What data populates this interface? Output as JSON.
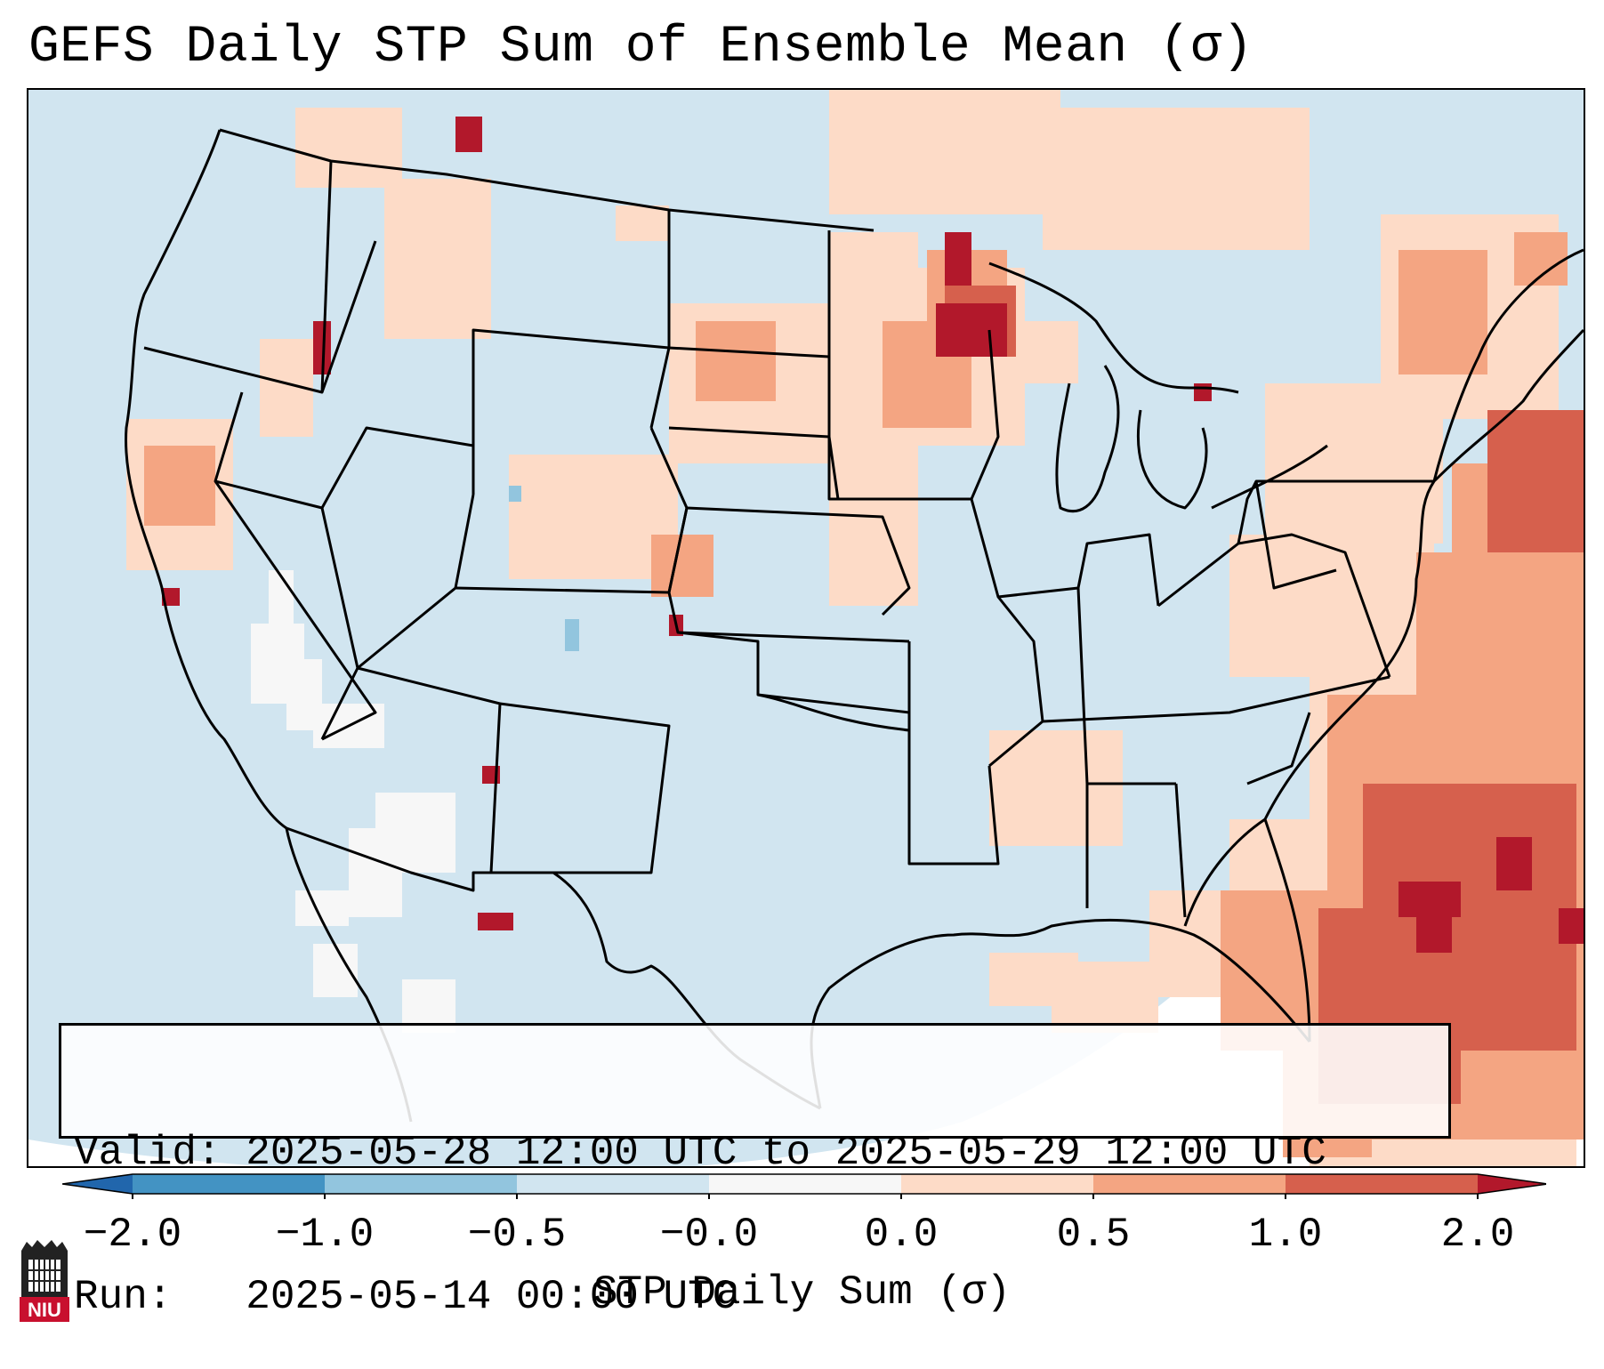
{
  "title": "GEFS Daily STP Sum of Ensemble Mean (σ)",
  "info": {
    "valid_line": "Valid: 2025-05-28 12:00 UTC to 2025-05-29 12:00 UTC",
    "run_line": "Run:   2025-05-14 00:00 UTC"
  },
  "colorbar": {
    "label": "STP Daily Sum (σ)",
    "tick_labels": [
      "−2.0",
      "−1.0",
      "−0.5",
      "−0.0",
      "0.0",
      "0.5",
      "1.0",
      "2.0"
    ],
    "colors": {
      "under": "#2166ac",
      "bins": [
        "#4393c3",
        "#92c5de",
        "#d1e5f0",
        "#f7f7f7",
        "#fddbc7",
        "#f4a582",
        "#d6604d"
      ],
      "over": "#b2182b"
    }
  },
  "map": {
    "background_value_color": "#d1e5f0",
    "outside_domain_color": "#ffffff",
    "fields": {
      "strong_anomaly_regions": [
        "Minnesota / Wisconsin border",
        "Western Atlantic southeast of Carolinas",
        "Northern Bahamas"
      ],
      "elevated_regions": [
        "Northern Plains",
        "Upper Midwest",
        "Mid-Atlantic coast",
        "Atlantic Ocean east of US",
        "Northern Gulf coast"
      ],
      "negative_regions": [
        "Colorado",
        "Eastern Idaho"
      ]
    }
  },
  "logo": {
    "text": "NIU",
    "color": "#c8102e"
  }
}
